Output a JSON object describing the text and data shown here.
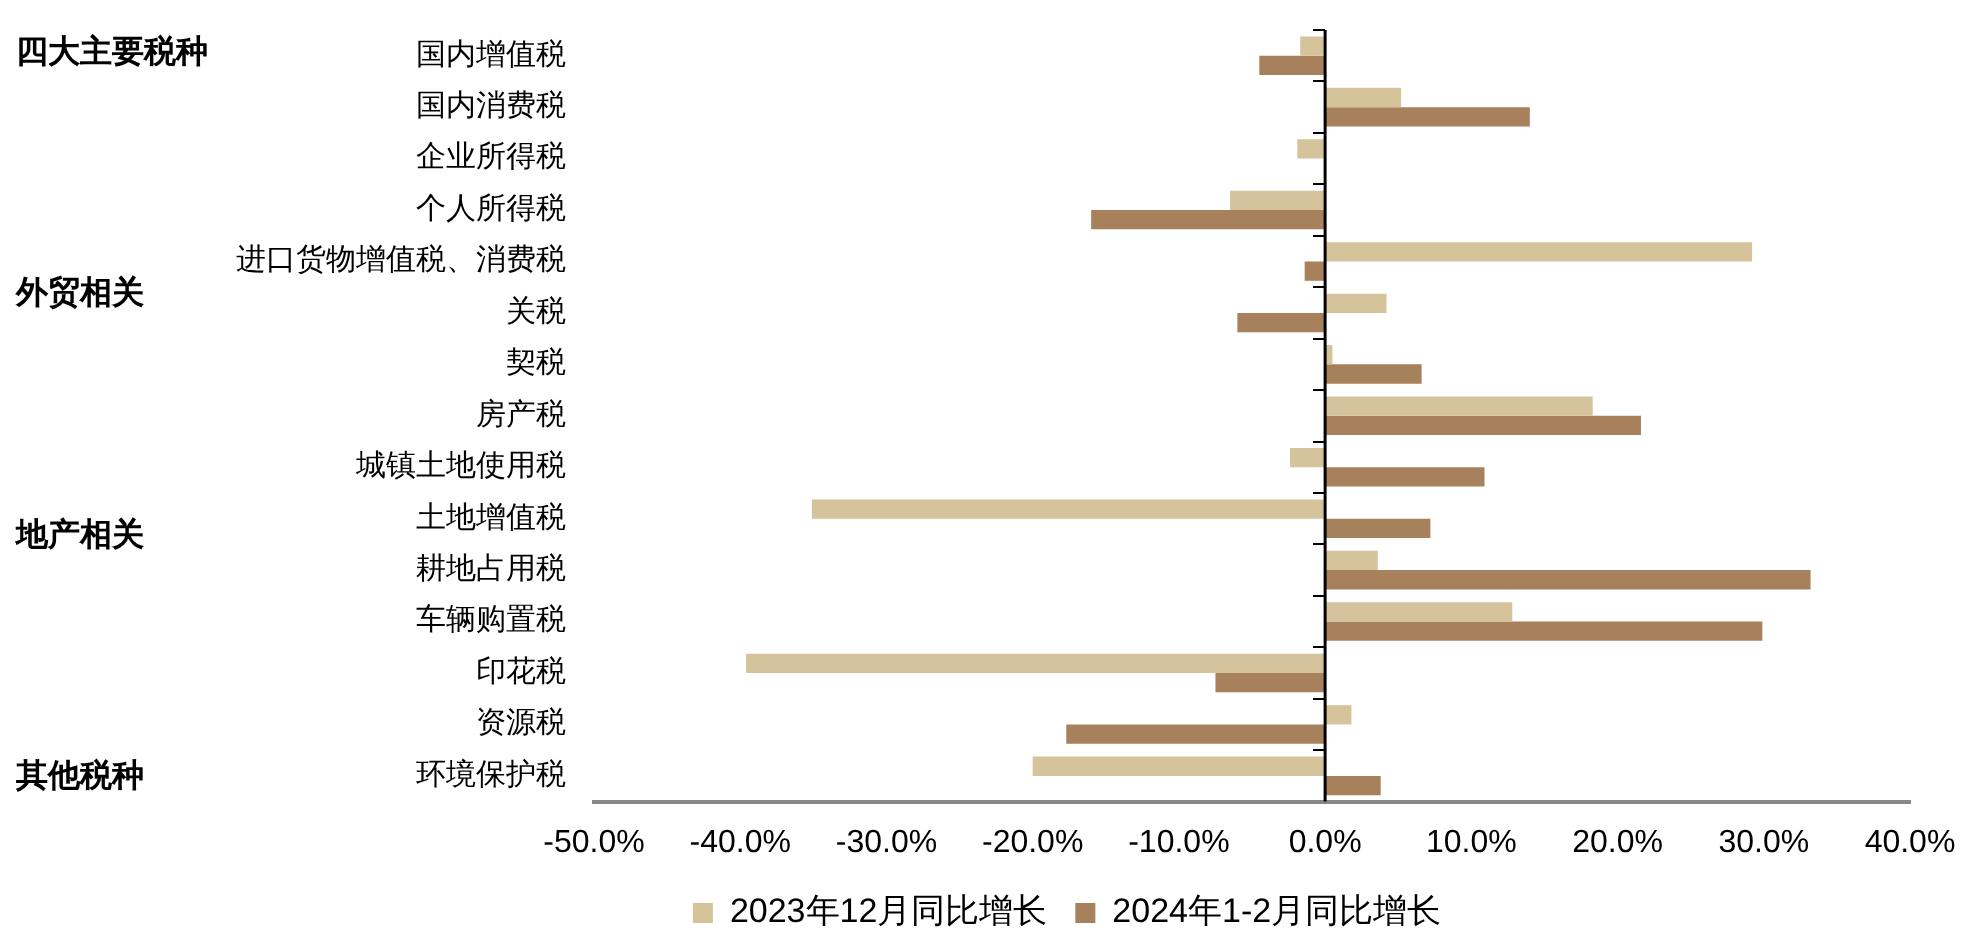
{
  "chart_data": {
    "type": "bar",
    "orientation": "horizontal",
    "categories": [
      "国内增值税",
      "国内消费税",
      "企业所得税",
      "个人所得税",
      "进口货物增值税、消费税",
      "关税",
      "契税",
      "房产税",
      "城镇土地使用税",
      "土地增值税",
      "耕地占用税",
      "车辆购置税",
      "印花税",
      "资源税",
      "环境保护税"
    ],
    "series": [
      {
        "name": "2023年12月同比增长",
        "color": "#d5c39b",
        "values": [
          -1.7,
          5.2,
          -1.9,
          -6.5,
          29.2,
          4.2,
          0.5,
          18.3,
          -2.4,
          -35.1,
          3.6,
          12.8,
          -39.6,
          1.8,
          -20.0
        ]
      },
      {
        "name": "2024年1-2月同比增长",
        "color": "#a7815b",
        "values": [
          -4.5,
          14.0,
          null,
          -16.0,
          -1.4,
          -6.0,
          6.6,
          21.6,
          10.9,
          7.2,
          33.2,
          29.9,
          -7.5,
          -17.7,
          3.8
        ]
      }
    ],
    "xlim": [
      -50,
      40
    ],
    "xticks": [
      {
        "value": -50,
        "label": "-50.0%"
      },
      {
        "value": -40,
        "label": "-40.0%"
      },
      {
        "value": -30,
        "label": "-30.0%"
      },
      {
        "value": -20,
        "label": "-20.0%"
      },
      {
        "value": -10,
        "label": "-10.0%"
      },
      {
        "value": 0,
        "label": "0.0%"
      },
      {
        "value": 10,
        "label": "10.0%"
      },
      {
        "value": 20,
        "label": "20.0%"
      },
      {
        "value": 30,
        "label": "30.0%"
      },
      {
        "value": 40,
        "label": "40.0%"
      }
    ],
    "annotations": [
      "四大主要税种",
      "外贸相关",
      "地产相关",
      "其他税种"
    ],
    "ref_lines": [
      {
        "axis": "x",
        "value": 0,
        "color": "#000000"
      }
    ],
    "legend": "bottom",
    "grid": false
  }
}
